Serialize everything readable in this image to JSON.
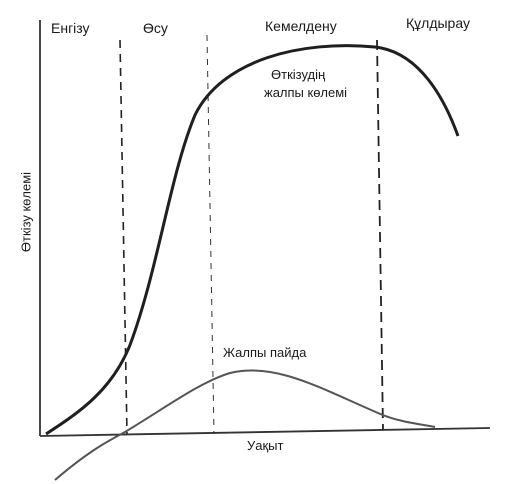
{
  "diagram": {
    "stages": {
      "introduction": "Енгізу",
      "growth": "Өсу",
      "maturity": "Кемелдену",
      "decline": "Құлдырау"
    },
    "curves": {
      "sales_line1": "Өткізудің",
      "sales_line2": "жалпы көлемі",
      "profit": "Жалпы пайда"
    },
    "axes": {
      "x_label": "Уақыт",
      "y_label": "Өткізу көлемі"
    },
    "colors": {
      "ink": "#1a1a1a",
      "background": "#ffffff"
    }
  }
}
